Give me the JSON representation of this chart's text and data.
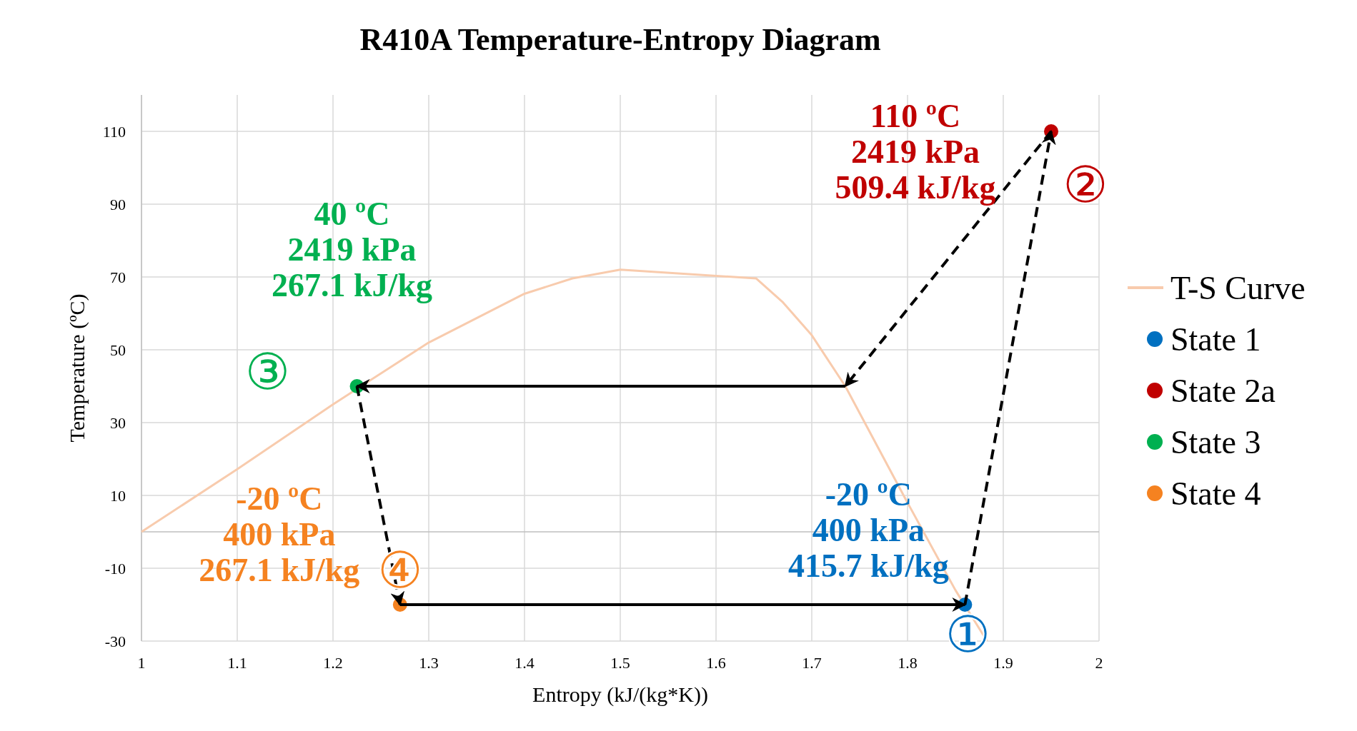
{
  "chart_data": {
    "type": "scatter",
    "title": "R410A Temperature-Entropy Diagram",
    "xlabel": "Entropy (kJ/(kg*K))",
    "ylabel": "Temperature (ºC)",
    "xlim": [
      1,
      2
    ],
    "xticks": [
      1,
      1.1,
      1.2,
      1.3,
      1.4,
      1.5,
      1.6,
      1.7,
      1.8,
      1.9,
      2
    ],
    "ylim": [
      -30,
      120
    ],
    "yticks": [
      -30,
      -10,
      10,
      30,
      50,
      70,
      90,
      110
    ],
    "grid": true,
    "legend": "right",
    "x": [
      1,
      1.1,
      1.2,
      1.3,
      1.4,
      1.45,
      1.5,
      1.642,
      1.67,
      1.7,
      1.735,
      1.8,
      1.85,
      1.883
    ],
    "series": [
      {
        "name": "T-S Curve",
        "type": "line",
        "color": "#f8cbad",
        "values": [
          0,
          17.2,
          35,
          52,
          65.4,
          69.6,
          72,
          69.6,
          63,
          54,
          40,
          8,
          -16,
          -30
        ]
      },
      {
        "name": "State 1",
        "color": "#0070c0",
        "marker": "circle",
        "x": [
          1.86
        ],
        "values": [
          -20
        ],
        "value_labels": [
          "-20 ºC\n400 kPa\n415.7 kJ/kg"
        ]
      },
      {
        "name": "State 2a",
        "color": "#c00000",
        "marker": "circle",
        "x": [
          1.95
        ],
        "values": [
          110
        ],
        "value_labels": [
          "110 ºC\n2419 kPa\n509.4 kJ/kg"
        ]
      },
      {
        "name": "State 3",
        "color": "#00b050",
        "marker": "circle",
        "x": [
          1.225
        ],
        "values": [
          40
        ],
        "value_labels": [
          "40 ºC\n2419 kPa\n267.1 kJ/kg"
        ]
      },
      {
        "name": "State 4",
        "color": "#f58220",
        "marker": "circle",
        "x": [
          1.27
        ],
        "values": [
          -20
        ],
        "value_labels": [
          "-20 ºC\n400 kPa\n267.1 kJ/kg"
        ]
      },
      {
        "type": "line",
        "color": "#000000",
        "line_style": "dashed",
        "x": [
          1.86,
          1.95
        ],
        "values": [
          -20,
          110
        ]
      },
      {
        "type": "line",
        "color": "#000000",
        "line_style": "dashed",
        "x": [
          1.95,
          1.735
        ],
        "values": [
          110,
          40
        ]
      },
      {
        "type": "line",
        "color": "#000000",
        "line_style": "solid",
        "x": [
          1.735,
          1.225
        ],
        "values": [
          40,
          40
        ]
      },
      {
        "type": "line",
        "color": "#000000",
        "line_style": "dashed",
        "x": [
          1.225,
          1.27
        ],
        "values": [
          40,
          -20
        ]
      },
      {
        "type": "line",
        "color": "#000000",
        "line_style": "solid",
        "x": [
          1.27,
          1.86
        ],
        "values": [
          -20,
          -20
        ]
      }
    ],
    "annotations": [
      "②",
      "③",
      "④",
      "①"
    ]
  }
}
